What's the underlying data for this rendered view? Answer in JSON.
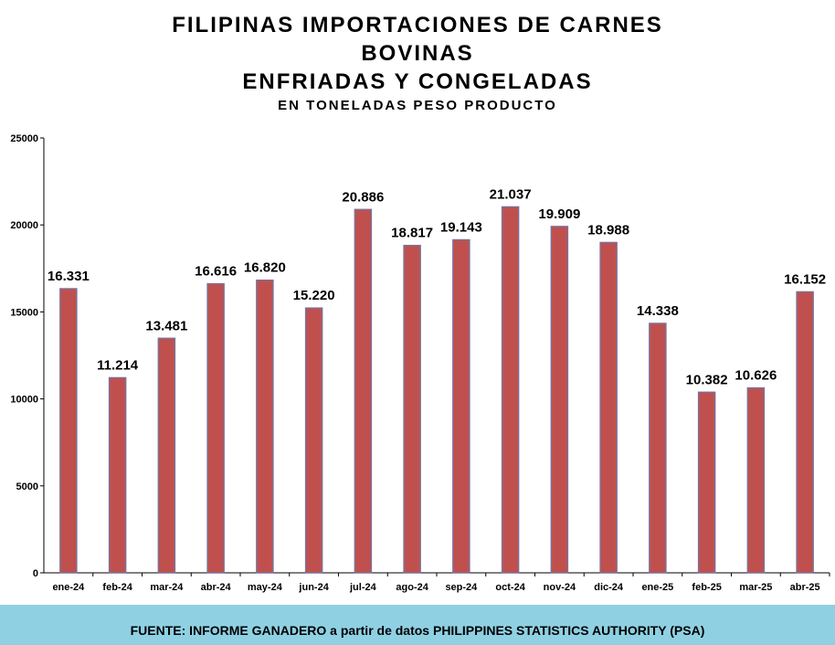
{
  "chart_data": {
    "type": "bar",
    "title": [
      "FILIPINAS IMPORTACIONES DE CARNES",
      "BOVINAS",
      "ENFRIADAS Y CONGELADAS"
    ],
    "subtitle": "EN TONELADAS PESO PRODUCTO",
    "xlabel": "",
    "ylabel": "",
    "ylim": [
      0,
      25000
    ],
    "yticks": [
      "0",
      "5000",
      "10000",
      "15000",
      "20000",
      "25000"
    ],
    "ytick_values": [
      0,
      5000,
      10000,
      15000,
      20000,
      25000
    ],
    "grid": false,
    "legend": "none",
    "bar_color": "#c0504d",
    "bar_edge_color": "#7f6f95",
    "categories": [
      "ene-24",
      "feb-24",
      "mar-24",
      "abr-24",
      "may-24",
      "jun-24",
      "jul-24",
      "ago-24",
      "sep-24",
      "oct-24",
      "nov-24",
      "dic-24",
      "ene-25",
      "feb-25",
      "mar-25",
      "abr-25"
    ],
    "values": [
      16331,
      11214,
      13481,
      16616,
      16820,
      15220,
      20886,
      18817,
      19143,
      21037,
      19909,
      18988,
      14338,
      10382,
      10626,
      16152
    ],
    "value_labels": [
      "16.331",
      "11.214",
      "13.481",
      "16.616",
      "16.820",
      "15.220",
      "20.886",
      "18.817",
      "19.143",
      "21.037",
      "19.909",
      "18.988",
      "14.338",
      "10.382",
      "10.626",
      "16.152"
    ]
  },
  "footer": {
    "source": "FUENTE: INFORME GANADERO a partir de datos  PHILIPPINES STATISTICS AUTHORITY (PSA)",
    "background": "#8fd0e3"
  }
}
